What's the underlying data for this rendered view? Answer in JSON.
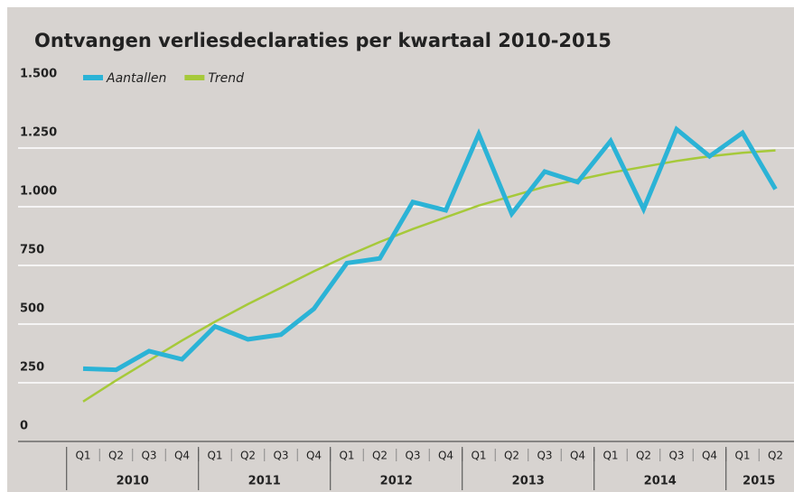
{
  "chart_data": {
    "type": "line",
    "title": "Ontvangen verliesdeclaraties per kwartaal 2010-2015",
    "categories": [
      "Q1",
      "Q2",
      "Q3",
      "Q4",
      "Q1",
      "Q2",
      "Q3",
      "Q4",
      "Q1",
      "Q2",
      "Q3",
      "Q4",
      "Q1",
      "Q2",
      "Q3",
      "Q4",
      "Q1",
      "Q2",
      "Q3",
      "Q4",
      "Q1",
      "Q2"
    ],
    "years": [
      {
        "label": "2010",
        "quarters": 4
      },
      {
        "label": "2011",
        "quarters": 4
      },
      {
        "label": "2012",
        "quarters": 4
      },
      {
        "label": "2013",
        "quarters": 4
      },
      {
        "label": "2014",
        "quarters": 4
      },
      {
        "label": "2015",
        "quarters": 2
      }
    ],
    "series": [
      {
        "name": "Aantallen",
        "color": "#2bb3d6",
        "values": [
          310,
          305,
          385,
          350,
          490,
          435,
          455,
          565,
          760,
          780,
          1020,
          985,
          1310,
          970,
          1150,
          1105,
          1280,
          990,
          1330,
          1215,
          1315,
          1075
        ]
      },
      {
        "name": "Trend",
        "color": "#a6c93a",
        "values": [
          170,
          260,
          345,
          430,
          510,
          585,
          655,
          725,
          790,
          850,
          905,
          955,
          1005,
          1045,
          1085,
          1115,
          1145,
          1170,
          1195,
          1215,
          1230,
          1240
        ]
      }
    ],
    "ylim": [
      0,
      1500
    ],
    "yticks": [
      0,
      250,
      500,
      750,
      {
        "value": 1000,
        "label": "1.000"
      },
      {
        "value": 1250,
        "label": "1.250"
      },
      {
        "value": 1500,
        "label": "1.500"
      }
    ],
    "grid": true,
    "legend": "top-left"
  }
}
